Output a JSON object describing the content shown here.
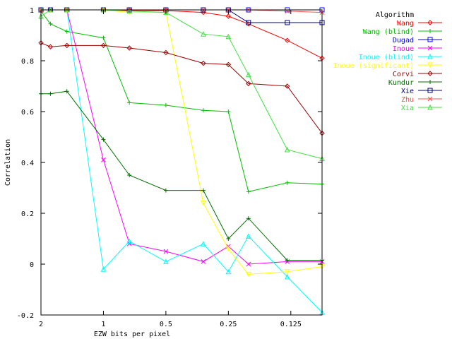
{
  "chart_data": {
    "type": "line",
    "xlabel": "EZW bits per pixel",
    "ylabel": "Correlation",
    "x_axis_scale": "log2, reversed",
    "xlim": [
      2,
      0.0884
    ],
    "ylim": [
      -0.2,
      1.0
    ],
    "x_ticks": [
      {
        "value": 2,
        "label": "2"
      },
      {
        "value": 1,
        "label": "1"
      },
      {
        "value": 0.5,
        "label": "0.5"
      },
      {
        "value": 0.25,
        "label": "0.25"
      },
      {
        "value": 0.125,
        "label": "0.125"
      }
    ],
    "y_ticks": [
      {
        "value": -0.2,
        "label": "-0.2"
      },
      {
        "value": 0,
        "label": "0"
      },
      {
        "value": 0.2,
        "label": "0.2"
      },
      {
        "value": 0.4,
        "label": "0.4"
      },
      {
        "value": 0.6,
        "label": "0.6"
      },
      {
        "value": 0.8,
        "label": "0.8"
      },
      {
        "value": 1,
        "label": "1"
      }
    ],
    "x": [
      2.0,
      1.8,
      1.5,
      1.0,
      0.75,
      0.5,
      0.33,
      0.25,
      0.2,
      0.13,
      0.0884
    ],
    "legend_title": "Algorithm",
    "legend_position": "top-right, outside plot",
    "series": [
      {
        "name": "Wang",
        "color": "#ff0000",
        "marker": "diamond",
        "values": [
          1.0,
          1.0,
          1.0,
          1.0,
          0.998,
          0.997,
          0.99,
          0.975,
          0.945,
          0.88,
          0.81
        ]
      },
      {
        "name": "Wang (blind)",
        "color": "#00c000",
        "marker": "plus",
        "values": [
          0.995,
          0.945,
          0.915,
          0.89,
          0.635,
          0.625,
          0.605,
          0.6,
          0.285,
          0.32,
          0.315
        ]
      },
      {
        "name": "Dugad",
        "color": "#0000ff",
        "marker": "square",
        "values": [
          1.0,
          1.0,
          1.0,
          1.0,
          1.0,
          1.0,
          1.0,
          1.0,
          1.0,
          1.0,
          1.0
        ]
      },
      {
        "name": "Inoue",
        "color": "#ff00ff",
        "marker": "x",
        "values": [
          1.0,
          1.0,
          1.0,
          0.41,
          0.08,
          0.05,
          0.01,
          0.07,
          0.0,
          0.01,
          0.01
        ]
      },
      {
        "name": "Inoue (blind)",
        "color": "#00ffff",
        "marker": "triangle",
        "values": [
          1.0,
          1.0,
          1.0,
          -0.02,
          0.09,
          0.01,
          0.08,
          -0.03,
          0.11,
          -0.05,
          -0.19
        ]
      },
      {
        "name": "Inoue (significant)",
        "color": "#ffff00",
        "marker": "triangle-down",
        "values": [
          1.0,
          1.0,
          1.0,
          1.0,
          0.99,
          0.99,
          0.24,
          0.06,
          -0.04,
          -0.03,
          -0.01
        ]
      },
      {
        "name": "Corvi",
        "color": "#a00000",
        "marker": "diamond",
        "values": [
          0.87,
          0.855,
          0.86,
          0.86,
          0.85,
          0.832,
          0.79,
          0.785,
          0.71,
          0.7,
          0.515
        ]
      },
      {
        "name": "Kundur",
        "color": "#007000",
        "marker": "plus",
        "values": [
          0.67,
          0.67,
          0.68,
          0.49,
          0.35,
          0.29,
          0.29,
          0.1,
          0.18,
          0.015,
          0.015
        ]
      },
      {
        "name": "Xie",
        "color": "#000080",
        "marker": "square",
        "values": [
          1.0,
          1.0,
          1.0,
          1.0,
          1.0,
          1.0,
          1.0,
          1.0,
          0.95,
          0.95,
          0.95
        ]
      },
      {
        "name": "Zhu",
        "color": "#ff5050",
        "marker": "x",
        "values": [
          1.0,
          1.0,
          1.0,
          1.0,
          1.0,
          1.0,
          1.0,
          1.0,
          1.0,
          0.995,
          0.99
        ]
      },
      {
        "name": "Xia",
        "color": "#40e040",
        "marker": "triangle",
        "values": [
          0.975,
          1.0,
          1.0,
          1.0,
          0.995,
          0.99,
          0.905,
          0.895,
          0.745,
          0.45,
          0.415
        ]
      }
    ]
  }
}
